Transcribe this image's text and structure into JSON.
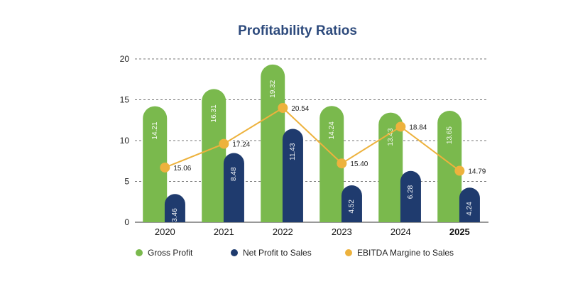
{
  "colors": {
    "gross": "#7ab94d",
    "net": "#1f3b6e",
    "ebitda": "#edb23d",
    "title": "#2d4a7c",
    "grid": "#777777"
  },
  "chart_data": {
    "type": "bar",
    "title": "Profitability Ratios",
    "xlabel": "",
    "ylabel": "",
    "ylim": [
      0,
      20
    ],
    "yticks": [
      "0",
      "5",
      "10",
      "15",
      "20"
    ],
    "grid": "dashed horizontal",
    "legend_position": "bottom",
    "categories": [
      "2020",
      "2021",
      "2022",
      "2023",
      "2024",
      "2025"
    ],
    "bold_category": "2025",
    "series": [
      {
        "name": "Gross Profit",
        "type": "bar",
        "values": [
          14.21,
          16.31,
          19.32,
          14.24,
          13.43,
          13.65
        ],
        "labels": [
          "14.21",
          "16.31",
          "19.32",
          "14.24",
          "13.43",
          "13.65"
        ]
      },
      {
        "name": "Net Profit to Sales",
        "type": "bar",
        "values": [
          3.46,
          8.48,
          11.43,
          4.52,
          6.28,
          4.24
        ],
        "labels": [
          "3.46",
          "8.48",
          "11.43",
          "4.52",
          "6.28",
          "4.24"
        ]
      },
      {
        "name": "EBITDA Margine to Sales",
        "type": "line",
        "values": [
          15.06,
          17.24,
          20.54,
          15.4,
          18.84,
          14.79
        ],
        "labels": [
          "15.06",
          "17.24",
          "20.54",
          "15.40",
          "18.84",
          "14.79"
        ],
        "display_y": [
          6.7,
          9.6,
          14.0,
          7.2,
          11.7,
          6.3
        ]
      }
    ]
  }
}
